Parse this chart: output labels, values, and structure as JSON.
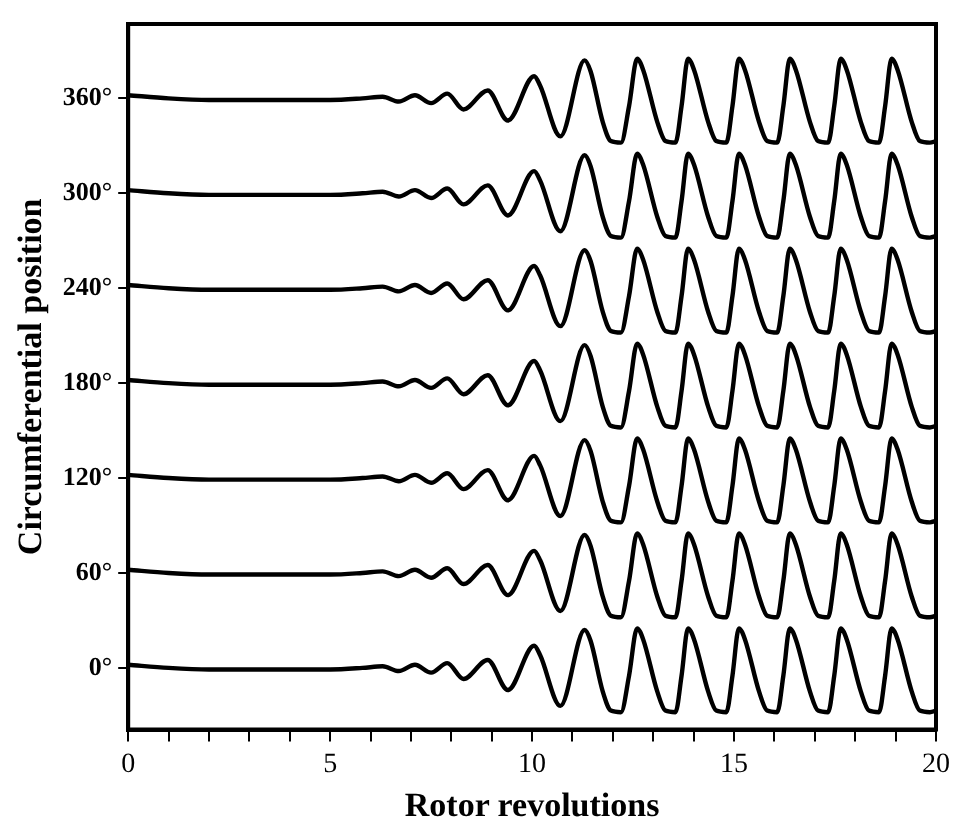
{
  "chart_data": {
    "type": "line",
    "xlabel": "Rotor revolutions",
    "ylabel": "Circumferential position",
    "marker": "none",
    "line_style": "solid",
    "grid": false,
    "legend": false,
    "xlim": [
      0,
      20
    ],
    "xticks": [
      0,
      {
        "value": 1,
        "label": null
      },
      {
        "value": 2,
        "label": null
      },
      {
        "value": 3,
        "label": null
      },
      {
        "value": 4,
        "label": null
      },
      5,
      {
        "value": 6,
        "label": null
      },
      {
        "value": 7,
        "label": null
      },
      {
        "value": 8,
        "label": null
      },
      {
        "value": 9,
        "label": null
      },
      10,
      {
        "value": 11,
        "label": null
      },
      {
        "value": 12,
        "label": null
      },
      {
        "value": 13,
        "label": null
      },
      {
        "value": 14,
        "label": null
      },
      15,
      {
        "value": 16,
        "label": null
      },
      {
        "value": 17,
        "label": null
      },
      {
        "value": 18,
        "label": null
      },
      {
        "value": 19,
        "label": null
      },
      20
    ],
    "ylim": [
      -39,
      407
    ],
    "yticks": [
      {
        "value": 0,
        "label": "0°"
      },
      {
        "value": 60,
        "label": "60°"
      },
      {
        "value": 120,
        "label": "120°"
      },
      {
        "value": 180,
        "label": "180°"
      },
      {
        "value": 240,
        "label": "240°"
      },
      {
        "value": 300,
        "label": "300°"
      },
      {
        "value": 360,
        "label": "360°"
      }
    ],
    "x": [
      0,
      1,
      2,
      3,
      4,
      5,
      5.8,
      6.3,
      6.7,
      7.1,
      7.5,
      7.9,
      8.3,
      8.9,
      9.4,
      10.05,
      10.2,
      10.7,
      11.3,
      11.45,
      11.75,
      11.95,
      12.2,
      12.4,
      12.6,
      12.75,
      13.1,
      13.3,
      13.55,
      13.7,
      13.86,
      14.01,
      14.36,
      14.56,
      14.81,
      14.96,
      15.12,
      15.27,
      15.62,
      15.82,
      16.07,
      16.22,
      16.38,
      16.53,
      16.88,
      17.08,
      17.33,
      17.48,
      17.64,
      17.79,
      18.14,
      18.34,
      18.59,
      18.74,
      18.9,
      19.05,
      19.4,
      19.6,
      19.85,
      20
    ],
    "series": [
      {
        "color": "#000000",
        "values": [
          2,
          0,
          -1,
          -1,
          -1,
          -1,
          0,
          1,
          -2,
          2,
          -3,
          3,
          -7,
          5,
          -14,
          14,
          8,
          -24,
          24,
          17,
          -15,
          -27,
          -28,
          -5,
          25,
          18,
          -15,
          -27,
          -28,
          -5,
          25,
          18,
          -15,
          -27,
          -28,
          -5,
          25,
          18,
          -15,
          -27,
          -28,
          -5,
          25,
          18,
          -15,
          -27,
          -28,
          -5,
          25,
          18,
          -15,
          -27,
          -28,
          -5,
          25,
          18,
          -15,
          -27,
          -28,
          -27
        ]
      },
      {
        "color": "#000000",
        "values": [
          62,
          60,
          59,
          59,
          59,
          59,
          60,
          61,
          58,
          62,
          57,
          63,
          53,
          65,
          46,
          74,
          68,
          36,
          84,
          77,
          45,
          33,
          32,
          55,
          85,
          78,
          45,
          33,
          32,
          55,
          85,
          78,
          45,
          33,
          32,
          55,
          85,
          78,
          45,
          33,
          32,
          55,
          85,
          78,
          45,
          33,
          32,
          55,
          85,
          78,
          45,
          33,
          32,
          55,
          85,
          78,
          45,
          33,
          32,
          33
        ]
      },
      {
        "color": "#000000",
        "values": [
          122,
          120,
          119,
          119,
          119,
          119,
          120,
          121,
          118,
          122,
          117,
          123,
          113,
          125,
          106,
          134,
          128,
          96,
          144,
          137,
          105,
          93,
          92,
          115,
          145,
          138,
          105,
          93,
          92,
          115,
          145,
          138,
          105,
          93,
          92,
          115,
          145,
          138,
          105,
          93,
          92,
          115,
          145,
          138,
          105,
          93,
          92,
          115,
          145,
          138,
          105,
          93,
          92,
          115,
          145,
          138,
          105,
          93,
          92,
          93
        ]
      },
      {
        "color": "#000000",
        "values": [
          182,
          180,
          179,
          179,
          179,
          179,
          180,
          181,
          178,
          182,
          177,
          183,
          173,
          185,
          166,
          194,
          188,
          156,
          204,
          197,
          165,
          153,
          152,
          175,
          205,
          198,
          165,
          153,
          152,
          175,
          205,
          198,
          165,
          153,
          152,
          175,
          205,
          198,
          165,
          153,
          152,
          175,
          205,
          198,
          165,
          153,
          152,
          175,
          205,
          198,
          165,
          153,
          152,
          175,
          205,
          198,
          165,
          153,
          152,
          153
        ]
      },
      {
        "color": "#000000",
        "values": [
          242,
          240,
          239,
          239,
          239,
          239,
          240,
          241,
          238,
          242,
          237,
          243,
          233,
          245,
          226,
          254,
          248,
          216,
          264,
          257,
          225,
          213,
          212,
          235,
          265,
          258,
          225,
          213,
          212,
          235,
          265,
          258,
          225,
          213,
          212,
          235,
          265,
          258,
          225,
          213,
          212,
          235,
          265,
          258,
          225,
          213,
          212,
          235,
          265,
          258,
          225,
          213,
          212,
          235,
          265,
          258,
          225,
          213,
          212,
          213
        ]
      },
      {
        "color": "#000000",
        "values": [
          302,
          300,
          299,
          299,
          299,
          299,
          300,
          301,
          298,
          302,
          297,
          303,
          293,
          305,
          286,
          314,
          308,
          276,
          324,
          317,
          285,
          273,
          272,
          295,
          325,
          318,
          285,
          273,
          272,
          295,
          325,
          318,
          285,
          273,
          272,
          295,
          325,
          318,
          285,
          273,
          272,
          295,
          325,
          318,
          285,
          273,
          272,
          295,
          325,
          318,
          285,
          273,
          272,
          295,
          325,
          318,
          285,
          273,
          272,
          273
        ]
      },
      {
        "color": "#000000",
        "values": [
          362,
          360,
          359,
          359,
          359,
          359,
          360,
          361,
          358,
          362,
          357,
          363,
          353,
          365,
          346,
          374,
          368,
          336,
          384,
          377,
          345,
          333,
          332,
          355,
          385,
          378,
          345,
          333,
          332,
          355,
          385,
          378,
          345,
          333,
          332,
          355,
          385,
          378,
          345,
          333,
          332,
          355,
          385,
          378,
          345,
          333,
          332,
          355,
          385,
          378,
          345,
          333,
          332,
          355,
          385,
          378,
          345,
          333,
          332,
          333
        ]
      }
    ]
  }
}
